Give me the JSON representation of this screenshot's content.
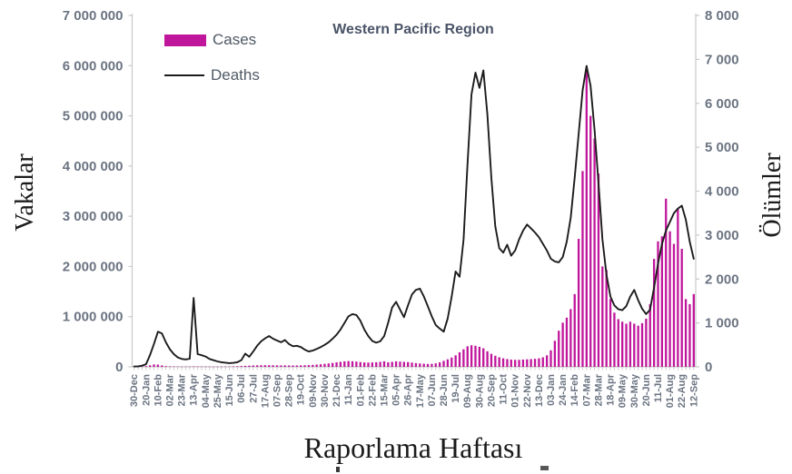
{
  "chart": {
    "title": "Western Pacific Region",
    "legend": [
      {
        "label": "Cases",
        "type": "bar",
        "color": "#C0169C"
      },
      {
        "label": "Deaths",
        "type": "line",
        "color": "#1c1c1c"
      }
    ]
  },
  "axes": {
    "y_left": {
      "title": "Vakalar",
      "min": 0,
      "max": 7000000,
      "tick_labels": [
        "0",
        "1 000 000",
        "2 000 000",
        "3 000 000",
        "4 000 000",
        "5 000 000",
        "6 000 000",
        "7 000 000"
      ]
    },
    "y_right": {
      "title": "Ölümler",
      "min": 0,
      "max": 8000,
      "tick_labels": [
        "0",
        "1 000",
        "2 000",
        "3 000",
        "4 000",
        "5 000",
        "6 000",
        "7 000",
        "8 000"
      ]
    },
    "x": {
      "title": "Raporlama Haftası",
      "weeks": 142,
      "label_every_n_weeks": 3
    }
  },
  "chart_data": {
    "type": "combo",
    "title": "Western Pacific Region",
    "xlabel": "Raporlama Haftası",
    "ylabel_left": "Vakalar",
    "ylabel_right": "Ölümler",
    "ylim_left": [
      0,
      7000000
    ],
    "ylim_right": [
      0,
      8000
    ],
    "legend_position": "top-left-inside",
    "grid": false,
    "x_tick_labels": [
      "30-Dec",
      "20-Jan",
      "10-Feb",
      "02-Mar",
      "23-Mar",
      "13-Apr",
      "04-May",
      "25-May",
      "15-Jun",
      "06-Jul",
      "27-Jul",
      "17-Aug",
      "07-Sep",
      "28-Sep",
      "19-Oct",
      "09-Nov",
      "30-Nov",
      "21-Dec",
      "11-Jan",
      "01-Feb",
      "22-Feb",
      "15-Mar",
      "05-Apr",
      "26-Apr",
      "17-May",
      "07-Jun",
      "28-Jun",
      "19-Jul",
      "09-Aug",
      "30-Aug",
      "20-Sep",
      "11-Oct",
      "01-Nov",
      "22-Nov",
      "13-Dec",
      "03-Jan",
      "24-Jan",
      "14-Feb",
      "07-Mar",
      "28-Mar",
      "18-Apr",
      "09-May",
      "30-May",
      "20-Jun",
      "11-Jul",
      "01-Aug",
      "22-Aug",
      "12-Sep"
    ],
    "series": [
      {
        "name": "Cases",
        "type": "bar",
        "axis": "left",
        "color": "#C0169C",
        "values": [
          3000,
          4000,
          6000,
          15000,
          30000,
          48000,
          45000,
          28000,
          14000,
          10000,
          8000,
          7000,
          6000,
          6000,
          7000,
          9000,
          8000,
          7000,
          6000,
          5000,
          5000,
          5000,
          5000,
          6000,
          7000,
          9000,
          12000,
          16000,
          20000,
          24000,
          28000,
          30000,
          32000,
          34000,
          33000,
          31000,
          30000,
          29000,
          30000,
          28000,
          27000,
          28000,
          30000,
          32000,
          35000,
          40000,
          46000,
          52000,
          60000,
          68000,
          78000,
          90000,
          100000,
          110000,
          115000,
          112000,
          105000,
          95000,
          88000,
          85000,
          88000,
          92000,
          100000,
          110000,
          90000,
          100000,
          110000,
          105000,
          100000,
          95000,
          85000,
          75000,
          68000,
          62000,
          58000,
          60000,
          70000,
          90000,
          120000,
          150000,
          185000,
          230000,
          290000,
          350000,
          410000,
          430000,
          420000,
          400000,
          370000,
          310000,
          260000,
          220000,
          190000,
          170000,
          155000,
          145000,
          140000,
          140000,
          145000,
          150000,
          155000,
          160000,
          170000,
          190000,
          230000,
          330000,
          520000,
          720000,
          880000,
          980000,
          1150000,
          1450000,
          2550000,
          3900000,
          5950000,
          5000000,
          4550000,
          3850000,
          2000000,
          1930000,
          1350000,
          1080000,
          950000,
          900000,
          860000,
          900000,
          860000,
          820000,
          870000,
          960000,
          1250000,
          2150000,
          2500000,
          2600000,
          3350000,
          2700000,
          2450000,
          3150000,
          2350000,
          1350000,
          1250000,
          1450000
        ]
      },
      {
        "name": "Deaths",
        "type": "line",
        "axis": "right",
        "color": "#1c1c1c",
        "values": [
          9,
          12,
          26,
          60,
          270,
          520,
          800,
          760,
          560,
          400,
          290,
          215,
          180,
          170,
          185,
          1570,
          290,
          265,
          235,
          180,
          150,
          125,
          105,
          95,
          85,
          90,
          105,
          150,
          300,
          230,
          350,
          480,
          580,
          650,
          700,
          640,
          600,
          560,
          610,
          520,
          470,
          480,
          450,
          390,
          350,
          370,
          410,
          450,
          500,
          560,
          640,
          730,
          850,
          1000,
          1150,
          1200,
          1180,
          1050,
          850,
          700,
          590,
          550,
          580,
          700,
          1000,
          1350,
          1480,
          1300,
          1130,
          1400,
          1650,
          1750,
          1780,
          1600,
          1380,
          1150,
          950,
          870,
          800,
          1100,
          1600,
          2170,
          2050,
          2900,
          4600,
          6200,
          6700,
          6350,
          6750,
          5750,
          4300,
          3200,
          2700,
          2600,
          2780,
          2530,
          2650,
          2900,
          3100,
          3240,
          3150,
          3060,
          2950,
          2800,
          2650,
          2460,
          2400,
          2380,
          2500,
          2850,
          3400,
          4300,
          5300,
          6300,
          6850,
          6400,
          5400,
          4200,
          2900,
          2100,
          1600,
          1400,
          1310,
          1290,
          1380,
          1600,
          1750,
          1520,
          1320,
          1200,
          1300,
          1800,
          2350,
          2800,
          3100,
          3300,
          3500,
          3600,
          3670,
          3350,
          2850,
          2460
        ]
      }
    ]
  }
}
